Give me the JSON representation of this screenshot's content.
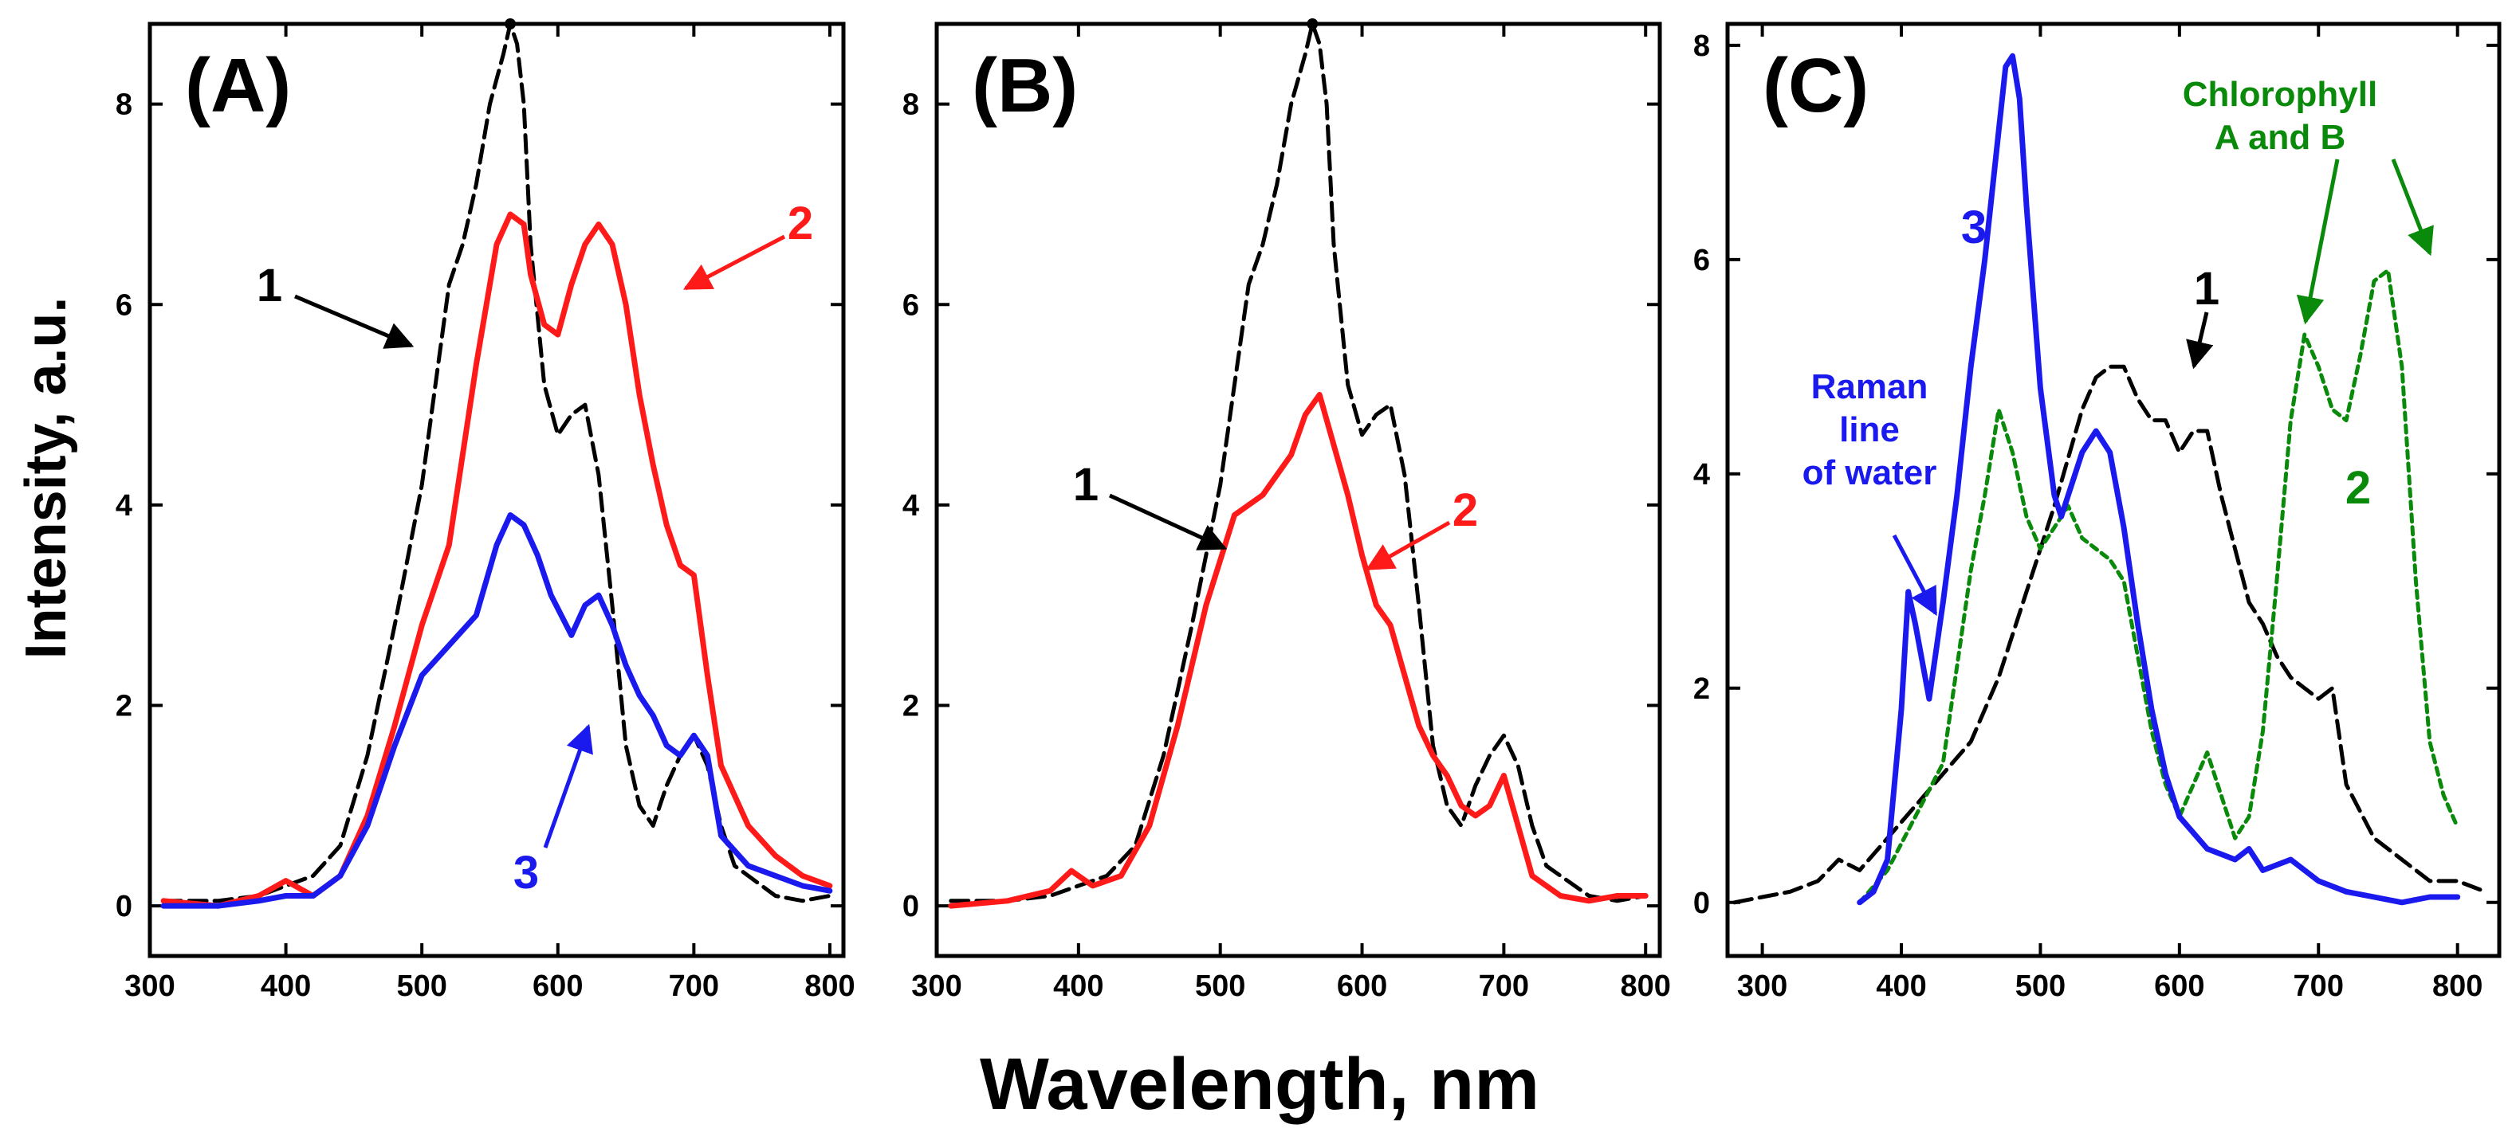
{
  "figure": {
    "ylabel": "Intensity, a.u.",
    "xlabel": "Wavelength, nm"
  },
  "colors": {
    "black": "#000000",
    "red": "#ff1a1a",
    "blue": "#1a1aee",
    "green": "#0a8a0a"
  },
  "chart_data": [
    {
      "type": "line",
      "panel": "(A)",
      "xlim": [
        300,
        810
      ],
      "ylim": [
        -0.5,
        8.8
      ],
      "xticks": [
        "300",
        "400",
        "500",
        "600",
        "700",
        "800"
      ],
      "yticks": [
        "0",
        "2",
        "4",
        "6",
        "8"
      ],
      "series": [
        {
          "name": "1",
          "color": "black",
          "style": "dashed",
          "x": [
            310,
            350,
            380,
            400,
            420,
            440,
            460,
            480,
            500,
            510,
            520,
            530,
            540,
            550,
            560,
            565,
            570,
            575,
            580,
            590,
            600,
            610,
            620,
            630,
            640,
            650,
            660,
            670,
            680,
            690,
            700,
            710,
            720,
            730,
            740,
            760,
            780,
            800
          ],
          "y": [
            0.05,
            0.05,
            0.1,
            0.2,
            0.3,
            0.6,
            1.5,
            2.8,
            4.2,
            5.2,
            6.2,
            6.6,
            7.2,
            8.0,
            8.5,
            8.8,
            8.6,
            8.0,
            6.6,
            5.2,
            4.7,
            4.9,
            5.0,
            4.3,
            3.0,
            1.6,
            1.0,
            0.8,
            1.2,
            1.5,
            1.7,
            1.4,
            0.8,
            0.4,
            0.3,
            0.1,
            0.05,
            0.1
          ]
        },
        {
          "name": "2",
          "color": "red",
          "style": "solid",
          "x": [
            310,
            350,
            380,
            400,
            420,
            440,
            460,
            480,
            500,
            520,
            540,
            555,
            565,
            575,
            580,
            590,
            600,
            610,
            620,
            630,
            640,
            650,
            660,
            670,
            680,
            690,
            700,
            710,
            720,
            740,
            760,
            780,
            800
          ],
          "y": [
            0.05,
            0.0,
            0.1,
            0.25,
            0.1,
            0.3,
            0.9,
            1.8,
            2.8,
            3.6,
            5.4,
            6.6,
            6.9,
            6.8,
            6.3,
            5.8,
            5.7,
            6.2,
            6.6,
            6.8,
            6.6,
            6.0,
            5.1,
            4.4,
            3.8,
            3.4,
            3.3,
            2.3,
            1.4,
            0.8,
            0.5,
            0.3,
            0.2
          ]
        },
        {
          "name": "3",
          "color": "blue",
          "style": "solid",
          "x": [
            310,
            350,
            380,
            400,
            420,
            440,
            460,
            480,
            500,
            520,
            540,
            555,
            565,
            575,
            585,
            595,
            610,
            620,
            630,
            640,
            650,
            660,
            670,
            680,
            690,
            700,
            710,
            720,
            740,
            760,
            780,
            800
          ],
          "y": [
            0.0,
            0.0,
            0.05,
            0.1,
            0.1,
            0.3,
            0.8,
            1.6,
            2.3,
            2.6,
            2.9,
            3.6,
            3.9,
            3.8,
            3.5,
            3.1,
            2.7,
            3.0,
            3.1,
            2.8,
            2.4,
            2.1,
            1.9,
            1.6,
            1.5,
            1.7,
            1.5,
            0.7,
            0.4,
            0.3,
            0.2,
            0.15
          ]
        }
      ],
      "annotations": [
        {
          "label": "1",
          "color": "black"
        },
        {
          "label": "2",
          "color": "red"
        },
        {
          "label": "3",
          "color": "blue"
        }
      ]
    },
    {
      "type": "line",
      "panel": "(B)",
      "xlim": [
        300,
        810
      ],
      "ylim": [
        -0.5,
        8.8
      ],
      "xticks": [
        "300",
        "400",
        "500",
        "600",
        "700",
        "800"
      ],
      "yticks": [
        "0",
        "2",
        "4",
        "6",
        "8"
      ],
      "series": [
        {
          "name": "1",
          "color": "black",
          "style": "dashed",
          "x": [
            310,
            350,
            380,
            400,
            420,
            440,
            460,
            480,
            500,
            510,
            520,
            530,
            540,
            550,
            560,
            565,
            570,
            575,
            580,
            590,
            600,
            610,
            620,
            630,
            640,
            650,
            660,
            670,
            680,
            690,
            700,
            710,
            720,
            730,
            740,
            760,
            780,
            800
          ],
          "y": [
            0.05,
            0.05,
            0.1,
            0.2,
            0.3,
            0.6,
            1.5,
            2.8,
            4.2,
            5.2,
            6.2,
            6.6,
            7.2,
            8.0,
            8.5,
            8.8,
            8.6,
            8.0,
            6.6,
            5.2,
            4.7,
            4.9,
            5.0,
            4.3,
            3.0,
            1.6,
            1.0,
            0.8,
            1.2,
            1.5,
            1.7,
            1.4,
            0.8,
            0.4,
            0.3,
            0.1,
            0.05,
            0.1
          ]
        },
        {
          "name": "2",
          "color": "red",
          "style": "solid",
          "x": [
            310,
            350,
            380,
            395,
            410,
            430,
            450,
            470,
            490,
            510,
            530,
            550,
            560,
            570,
            580,
            590,
            600,
            610,
            620,
            630,
            640,
            650,
            660,
            670,
            680,
            690,
            700,
            710,
            720,
            740,
            760,
            780,
            800
          ],
          "y": [
            0.0,
            0.05,
            0.15,
            0.35,
            0.2,
            0.3,
            0.8,
            1.8,
            3.0,
            3.9,
            4.1,
            4.5,
            4.9,
            5.1,
            4.6,
            4.1,
            3.5,
            3.0,
            2.8,
            2.3,
            1.8,
            1.5,
            1.3,
            1.0,
            0.9,
            1.0,
            1.3,
            0.8,
            0.3,
            0.1,
            0.05,
            0.1,
            0.1
          ]
        }
      ],
      "annotations": [
        {
          "label": "1",
          "color": "black"
        },
        {
          "label": "2",
          "color": "red"
        }
      ]
    },
    {
      "type": "line",
      "panel": "(C)",
      "xlim": [
        275,
        830
      ],
      "ylim": [
        -0.5,
        8.2
      ],
      "xticks": [
        "300",
        "400",
        "500",
        "600",
        "700",
        "800"
      ],
      "yticks": [
        "0",
        "2",
        "4",
        "6",
        "8"
      ],
      "series": [
        {
          "name": "1",
          "color": "black",
          "style": "dashed",
          "x": [
            280,
            300,
            320,
            340,
            355,
            370,
            390,
            410,
            430,
            450,
            470,
            490,
            510,
            530,
            540,
            550,
            560,
            570,
            580,
            590,
            600,
            610,
            620,
            630,
            640,
            650,
            660,
            670,
            680,
            690,
            700,
            710,
            720,
            740,
            760,
            780,
            800,
            820
          ],
          "y": [
            0.0,
            0.05,
            0.1,
            0.2,
            0.4,
            0.3,
            0.6,
            0.9,
            1.2,
            1.5,
            2.1,
            2.9,
            3.7,
            4.6,
            4.9,
            5.0,
            5.0,
            4.7,
            4.5,
            4.5,
            4.2,
            4.4,
            4.4,
            3.8,
            3.3,
            2.8,
            2.6,
            2.3,
            2.1,
            2.0,
            1.9,
            2.0,
            1.1,
            0.6,
            0.4,
            0.2,
            0.2,
            0.1
          ]
        },
        {
          "name": "2",
          "color": "green",
          "style": "dotted",
          "x": [
            370,
            390,
            410,
            430,
            450,
            460,
            470,
            480,
            490,
            500,
            510,
            520,
            530,
            540,
            550,
            560,
            570,
            580,
            590,
            600,
            610,
            620,
            630,
            640,
            650,
            660,
            670,
            680,
            690,
            700,
            710,
            720,
            730,
            740,
            750,
            760,
            770,
            780,
            790,
            800
          ],
          "y": [
            0.0,
            0.3,
            0.8,
            1.3,
            3.1,
            3.8,
            4.6,
            4.2,
            3.6,
            3.3,
            3.5,
            3.7,
            3.4,
            3.3,
            3.2,
            3.0,
            2.3,
            1.6,
            1.1,
            0.8,
            1.1,
            1.4,
            1.0,
            0.6,
            0.8,
            1.6,
            3.0,
            4.5,
            5.3,
            5.0,
            4.6,
            4.5,
            5.1,
            5.8,
            5.9,
            5.0,
            3.0,
            1.5,
            1.0,
            0.7
          ]
        },
        {
          "name": "3",
          "color": "blue",
          "style": "solid",
          "x": [
            370,
            380,
            390,
            400,
            405,
            410,
            420,
            430,
            440,
            450,
            460,
            470,
            475,
            480,
            485,
            490,
            500,
            510,
            515,
            520,
            530,
            540,
            550,
            560,
            570,
            580,
            590,
            600,
            620,
            640,
            650,
            660,
            680,
            700,
            720,
            740,
            760,
            780,
            800
          ],
          "y": [
            0.0,
            0.1,
            0.4,
            1.8,
            2.9,
            2.6,
            1.9,
            2.8,
            3.8,
            5.0,
            6.0,
            7.2,
            7.8,
            7.9,
            7.5,
            6.5,
            4.8,
            3.8,
            3.6,
            3.8,
            4.2,
            4.4,
            4.2,
            3.5,
            2.6,
            1.8,
            1.2,
            0.8,
            0.5,
            0.4,
            0.5,
            0.3,
            0.4,
            0.2,
            0.1,
            0.05,
            0.0,
            0.05,
            0.05
          ]
        }
      ],
      "annotations": [
        {
          "label": "3",
          "color": "blue"
        },
        {
          "label": "1",
          "color": "black"
        },
        {
          "label": "2",
          "color": "green"
        },
        {
          "label_lines": [
            "Raman",
            "line",
            "of water"
          ],
          "color": "blue"
        },
        {
          "label_lines": [
            "Chlorophyll",
            "A and B"
          ],
          "color": "green"
        }
      ]
    }
  ]
}
